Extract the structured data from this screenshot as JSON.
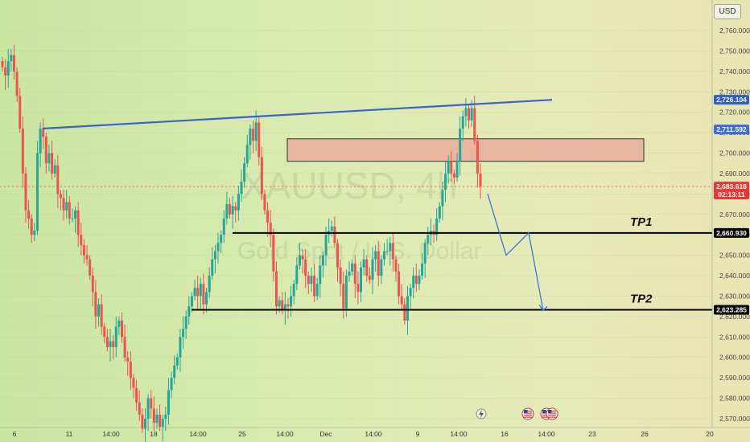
{
  "currency": "USD",
  "watermark": {
    "symbol": "XAUUSD, 4h",
    "description": "Gold Spot / U.S. Dollar"
  },
  "colors": {
    "up": "#26a69a",
    "down": "#ef5350",
    "trendline": "#3a62c9",
    "zone_fill": "#e8b29e",
    "level_line": "#000000",
    "arrow": "#3a78d8",
    "current_price": "#e53935",
    "blue_tag": "#2f5ec4"
  },
  "chart_data": {
    "type": "candlestick",
    "symbol": "XAUUSD",
    "timeframe": "4h",
    "ylim": [
      2565,
      2770
    ],
    "y_ticks": [
      "2,570.000",
      "2,580.000",
      "2,590.000",
      "2,600.000",
      "2,610.000",
      "2,620.000",
      "2,630.000",
      "2,640.000",
      "2,650.000",
      "2,660.000",
      "2,670.000",
      "2,680.000",
      "2,690.000",
      "2,700.000",
      "2,710.000",
      "2,720.000",
      "2,730.000",
      "2,740.000",
      "2,750.000",
      "2,760.000"
    ],
    "x_ticks": [
      "6",
      "11",
      "14:00",
      "18",
      "14:00",
      "25",
      "14:00",
      "Dec",
      "14:00",
      "9",
      "14:00",
      "16",
      "14:00",
      "23",
      "26",
      "20"
    ],
    "closes": [
      2742,
      2738,
      2745,
      2748,
      2740,
      2728,
      2712,
      2690,
      2672,
      2668,
      2660,
      2662,
      2700,
      2712,
      2708,
      2695,
      2700,
      2690,
      2694,
      2680,
      2678,
      2672,
      2676,
      2668,
      2668,
      2672,
      2660,
      2655,
      2650,
      2648,
      2640,
      2632,
      2620,
      2626,
      2615,
      2610,
      2605,
      2608,
      2605,
      2615,
      2618,
      2610,
      2600,
      2598,
      2590,
      2585,
      2578,
      2572,
      2565,
      2570,
      2580,
      2575,
      2568,
      2572,
      2566,
      2570,
      2572,
      2584,
      2590,
      2596,
      2600,
      2610,
      2614,
      2620,
      2625,
      2630,
      2634,
      2630,
      2636,
      2626,
      2632,
      2640,
      2648,
      2652,
      2656,
      2660,
      2668,
      2675,
      2670,
      2674,
      2672,
      2680,
      2686,
      2695,
      2704,
      2712,
      2706,
      2715,
      2698,
      2680,
      2672,
      2666,
      2660,
      2642,
      2625,
      2628,
      2623,
      2626,
      2625,
      2630,
      2636,
      2645,
      2650,
      2648,
      2640,
      2636,
      2640,
      2630,
      2636,
      2645,
      2650,
      2660,
      2662,
      2664,
      2656,
      2644,
      2636,
      2624,
      2640,
      2642,
      2646,
      2636,
      2632,
      2644,
      2648,
      2640,
      2638,
      2648,
      2652,
      2640,
      2648,
      2652,
      2652,
      2656,
      2648,
      2642,
      2630,
      2626,
      2618,
      2630,
      2634,
      2640,
      2636,
      2640,
      2646,
      2656,
      2660,
      2662,
      2660,
      2668,
      2674,
      2682,
      2690,
      2696,
      2690,
      2688,
      2696,
      2712,
      2718,
      2722,
      2716,
      2722,
      2706,
      2690,
      2683.618
    ],
    "trendline": {
      "from": [
        2712
      ],
      "to": [
        2726.104
      ]
    },
    "resistance_zone": {
      "low": 2696,
      "high": 2707
    },
    "levels": [
      {
        "name": "TP1",
        "value": 2660.93
      },
      {
        "name": "TP2",
        "value": 2623.285
      }
    ],
    "projection_path": [
      2680,
      2650,
      2661,
      2623
    ],
    "price_tags": [
      {
        "value": 2726.104,
        "label": "2,726.104",
        "style": "blue"
      },
      {
        "value": 2711.592,
        "label": "2,711.592",
        "style": "blue-light"
      },
      {
        "value": 2683.618,
        "label": "2,683.618",
        "sub": "02:13:11",
        "style": "red"
      },
      {
        "value": 2660.93,
        "label": "2,660.930",
        "style": "black"
      },
      {
        "value": 2623.285,
        "label": "2,623.285",
        "style": "black"
      }
    ],
    "event_markers": [
      "lightning",
      "us-flag",
      "us-flag-group"
    ]
  }
}
